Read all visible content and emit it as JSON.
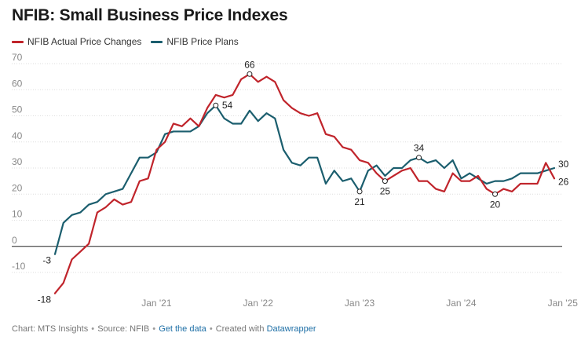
{
  "chart_data": {
    "type": "line",
    "title": "NFIB: Small Business Price Indexes",
    "xlabel": "",
    "ylabel": "",
    "ylim": [
      -18,
      70
    ],
    "y_ticks": [
      70,
      60,
      50,
      40,
      30,
      20,
      10,
      0,
      -10
    ],
    "x_tick_labels": [
      "Jan '21",
      "Jan '22",
      "Jan '23",
      "Jan '24",
      "Jan '25"
    ],
    "x_tick_indices": [
      12,
      24,
      36,
      48,
      60
    ],
    "x_start": "Jan 2020",
    "series": [
      {
        "name": "NFIB Actual Price Changes",
        "color": "#c0242b",
        "values": [
          -18,
          -14,
          -5,
          -2,
          1,
          13,
          15,
          18,
          16,
          17,
          25,
          26,
          37,
          40,
          47,
          46,
          49,
          46,
          53,
          58,
          57,
          58,
          64,
          66,
          63,
          65,
          63,
          56,
          53,
          51,
          50,
          51,
          43,
          42,
          38,
          37,
          33,
          32,
          28,
          25,
          27,
          29,
          30,
          25,
          25,
          22,
          21,
          28,
          25,
          25,
          27,
          22,
          20,
          22,
          21,
          24,
          24,
          24,
          32,
          26
        ]
      },
      {
        "name": "NFIB Price Plans",
        "color": "#1b5e6e",
        "values": [
          -3,
          9,
          12,
          13,
          16,
          17,
          20,
          21,
          22,
          28,
          34,
          34,
          36,
          43,
          44,
          44,
          44,
          46,
          51,
          54,
          49,
          47,
          47,
          52,
          48,
          51,
          49,
          37,
          32,
          31,
          34,
          34,
          24,
          29,
          25,
          26,
          21,
          29,
          31,
          27,
          30,
          30,
          33,
          34,
          32,
          33,
          30,
          33,
          26,
          28,
          26,
          24,
          25,
          25,
          26,
          28,
          28,
          28,
          29,
          30
        ]
      }
    ],
    "annotations": [
      {
        "series": 0,
        "index": 0,
        "label": "-18",
        "pos": "left",
        "marker": false
      },
      {
        "series": 1,
        "index": 0,
        "label": "-3",
        "pos": "left",
        "marker": false
      },
      {
        "series": 0,
        "index": 23,
        "label": "66",
        "pos": "above",
        "marker": true
      },
      {
        "series": 1,
        "index": 19,
        "label": "54",
        "pos": "right",
        "marker": true
      },
      {
        "series": 1,
        "index": 36,
        "label": "21",
        "pos": "below",
        "marker": true
      },
      {
        "series": 0,
        "index": 39,
        "label": "25",
        "pos": "below",
        "marker": true
      },
      {
        "series": 1,
        "index": 43,
        "label": "34",
        "pos": "above",
        "marker": true
      },
      {
        "series": 0,
        "index": 52,
        "label": "20",
        "pos": "below",
        "marker": true
      },
      {
        "series": 1,
        "index": 59,
        "label": "30",
        "pos": "end-upper",
        "marker": false
      },
      {
        "series": 0,
        "index": 59,
        "label": "26",
        "pos": "end-lower",
        "marker": false
      }
    ]
  },
  "footer": {
    "chart_credit": "Chart: MTS Insights",
    "source": "Source: NFIB",
    "get_data": "Get the data",
    "created_with": "Created with",
    "datawrapper": "Datawrapper",
    "separator": "•"
  }
}
